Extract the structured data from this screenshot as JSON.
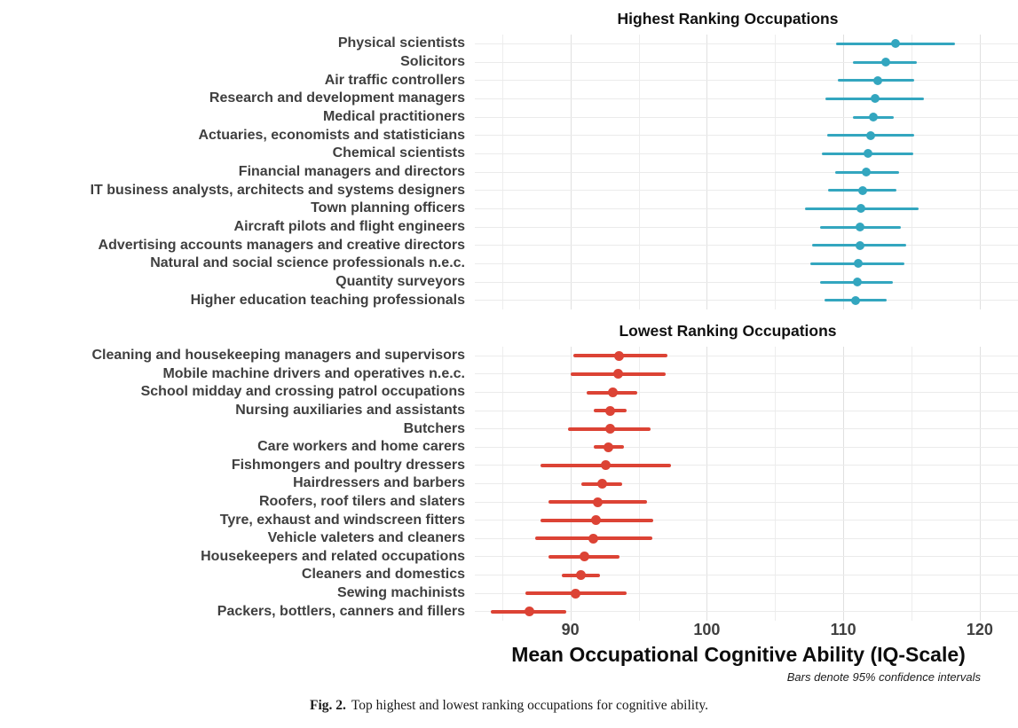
{
  "axis": {
    "title": "Mean Occupational Cognitive Ability (IQ-Scale)",
    "note": "Bars denote 95% confidence intervals",
    "ticks": [
      90,
      100,
      110,
      120
    ]
  },
  "caption": {
    "label": "Fig. 2.",
    "text": "Top highest and lowest ranking occupations for cognitive ability."
  },
  "colors": {
    "highest_series": "#33a6bf",
    "lowest_series": "#dc4335",
    "gridline_major": "#e0e0e0",
    "gridline_minor": "#ededed",
    "label_text": "#3f3f3f"
  },
  "chart_data": [
    {
      "type": "scatter",
      "subtype": "dot_with_95ci_horizontal",
      "title": "Highest Ranking Occupations",
      "color": "#33a6bf",
      "xlabel": "Mean Occupational Cognitive Ability (IQ-Scale)",
      "xlim": [
        83,
        122.8
      ],
      "xticks": [
        90,
        100,
        110,
        120
      ],
      "minor_gridlines": [
        85,
        95,
        105,
        115
      ],
      "grid": true,
      "legend": "none",
      "categories": [
        "Physical scientists",
        "Solicitors",
        "Air traffic controllers",
        "Research and development managers",
        "Medical practitioners",
        "Actuaries, economists and statisticians",
        "Chemical scientists",
        "Financial managers and directors",
        "IT business analysts, architects and systems designers",
        "Town planning officers",
        "Aircraft pilots and flight engineers",
        "Advertising accounts managers and creative directors",
        "Natural and social science professionals n.e.c.",
        "Quantity surveyors",
        "Higher education teaching professionals"
      ],
      "series": [
        {
          "name": "mean",
          "values": [
            113.8,
            113.1,
            112.5,
            112.3,
            112.2,
            112.0,
            111.8,
            111.7,
            111.4,
            111.3,
            111.2,
            111.2,
            111.1,
            111.0,
            110.9
          ]
        },
        {
          "name": "ci_low",
          "values": [
            109.5,
            110.7,
            109.6,
            108.7,
            110.7,
            108.8,
            108.4,
            109.4,
            108.9,
            107.2,
            108.3,
            107.7,
            107.6,
            108.3,
            108.6
          ]
        },
        {
          "name": "ci_high",
          "values": [
            118.2,
            115.4,
            115.2,
            115.9,
            113.7,
            115.2,
            115.1,
            114.1,
            113.9,
            115.5,
            114.2,
            114.6,
            114.5,
            113.6,
            113.2
          ]
        }
      ]
    },
    {
      "type": "scatter",
      "subtype": "dot_with_95ci_horizontal",
      "title": "Lowest Ranking Occupations",
      "color": "#dc4335",
      "xlabel": "Mean Occupational Cognitive Ability (IQ-Scale)",
      "xlim": [
        83,
        122.8
      ],
      "xticks": [
        90,
        100,
        110,
        120
      ],
      "minor_gridlines": [
        85,
        95,
        105,
        115
      ],
      "grid": true,
      "legend": "none",
      "categories": [
        "Cleaning and housekeeping managers and supervisors",
        "Mobile machine drivers and operatives n.e.c.",
        "School midday and crossing patrol occupations",
        "Nursing auxiliaries and assistants",
        "Butchers",
        "Care workers and home carers",
        "Fishmongers and poultry dressers",
        "Hairdressers and barbers",
        "Roofers, roof tilers and slaters",
        "Tyre, exhaust and windscreen fitters",
        "Vehicle valeters and cleaners",
        "Housekeepers and related occupations",
        "Cleaners and domestics",
        "Sewing machinists",
        "Packers, bottlers, canners and fillers"
      ],
      "series": [
        {
          "name": "mean",
          "values": [
            93.6,
            93.5,
            93.1,
            92.9,
            92.9,
            92.8,
            92.6,
            92.3,
            92.0,
            91.9,
            91.7,
            91.0,
            90.8,
            90.4,
            87.0
          ]
        },
        {
          "name": "ci_low",
          "values": [
            90.2,
            90.0,
            91.2,
            91.7,
            89.8,
            91.7,
            87.8,
            90.8,
            88.4,
            87.8,
            87.4,
            88.4,
            89.4,
            86.7,
            84.2
          ]
        },
        {
          "name": "ci_high",
          "values": [
            97.1,
            97.0,
            94.9,
            94.1,
            95.9,
            93.9,
            97.4,
            93.8,
            95.6,
            96.1,
            96.0,
            93.6,
            92.2,
            94.1,
            89.7
          ]
        }
      ]
    }
  ]
}
